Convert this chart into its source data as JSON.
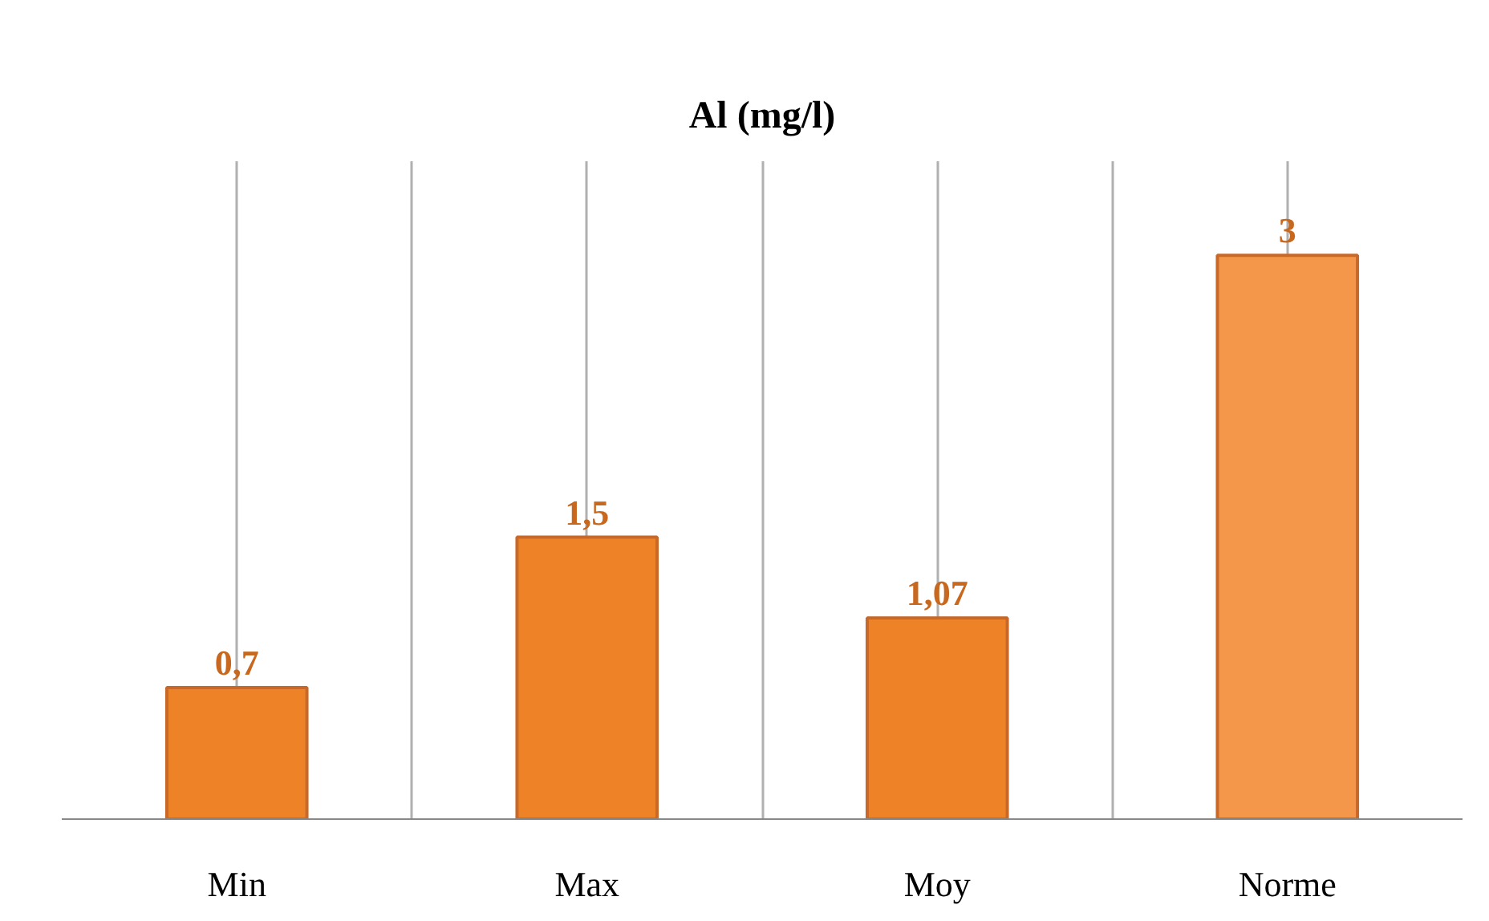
{
  "chart_data": {
    "type": "bar",
    "title": "Al (mg/l)",
    "categories": [
      "Min",
      "Max",
      "Moy",
      "Norme"
    ],
    "values": [
      0.7,
      1.5,
      1.07,
      3
    ],
    "value_labels": [
      "0,7",
      "1,5",
      "1,07",
      "3"
    ],
    "colors": [
      "#ee8227",
      "#ee8227",
      "#ee8227",
      "#f5974a"
    ],
    "ylim": [
      0,
      3.5
    ],
    "grid": "x",
    "tick_labels": "x"
  }
}
